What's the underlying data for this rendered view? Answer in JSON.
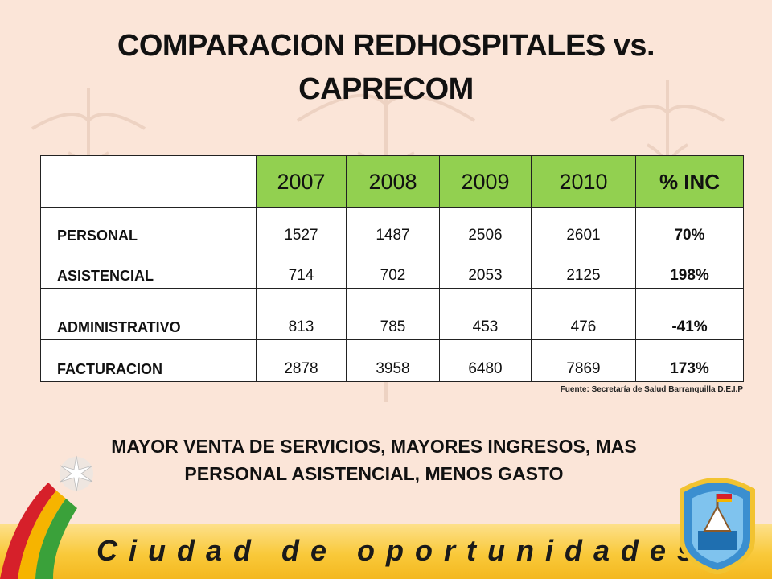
{
  "title": {
    "line1": "COMPARACION REDHOSPITALES vs.",
    "line2": "CAPRECOM"
  },
  "table": {
    "headers": [
      "",
      "2007",
      "2008",
      "2009",
      "2010",
      "% INC"
    ],
    "rows": [
      {
        "label": "PERSONAL",
        "values": [
          "1527",
          "1487",
          "2506",
          "2601"
        ],
        "pct": "70%"
      },
      {
        "label": "ASISTENCIAL",
        "values": [
          "714",
          "702",
          "2053",
          "2125"
        ],
        "pct": "198%"
      },
      {
        "label": "ADMINISTRATIVO",
        "values": [
          "813",
          "785",
          "453",
          "476"
        ],
        "pct": "-41%"
      },
      {
        "label": "FACTURACION",
        "values": [
          "2878",
          "3958",
          "6480",
          "7869"
        ],
        "pct": "173%"
      }
    ]
  },
  "source": "Fuente: Secretaría de Salud  Barranquilla  D.E.I.P",
  "conclusion": {
    "line1": "MAYOR VENTA DE SERVICIOS, MAYORES INGRESOS, MAS",
    "line2": "PERSONAL ASISTENCIAL, MENOS GASTO"
  },
  "footer": {
    "slogan": "Ciudad de oportunidades"
  },
  "icons": [
    "star-icon",
    "crest-icon",
    "caduceus-watermark"
  ],
  "colors": {
    "background": "#fbe5d8",
    "header_green": "#92d050",
    "footer_yellow": "#f9c93a"
  }
}
